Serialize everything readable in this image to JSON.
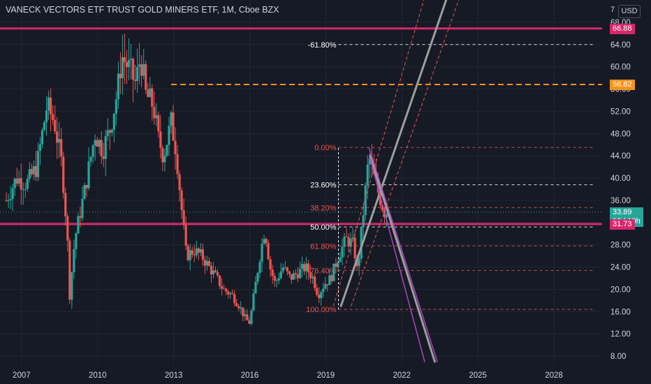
{
  "header": {
    "title": "VANECK VECTORS ETF TRUST GOLD MINERS ETF, 1M, Cboe BZX",
    "currency": "USD",
    "top_value": "7"
  },
  "badges": {
    "resistance": {
      "label": "66.88",
      "color": "#d5286b"
    },
    "fib_orange": {
      "label": "56.82",
      "color": "#f7931a"
    },
    "last_price": {
      "label": "33.89",
      "color": "#26a69a"
    },
    "countdown": {
      "label": "10d 19h"
    },
    "support": {
      "label": "31.73",
      "color": "#d5286b"
    }
  },
  "chart_data": {
    "type": "candlestick",
    "title": "VANECK VECTORS ETF TRUST GOLD MINERS ETF, 1M, Cboe BZX",
    "x_ticks": [
      {
        "label": "2007",
        "year": 2007
      },
      {
        "label": "2010",
        "year": 2010
      },
      {
        "label": "2013",
        "year": 2013
      },
      {
        "label": "2016",
        "year": 2016
      },
      {
        "label": "2019",
        "year": 2019
      },
      {
        "label": "2022",
        "year": 2022
      },
      {
        "label": "2025",
        "year": 2025
      },
      {
        "label": "2028",
        "year": 2028
      }
    ],
    "y_ticks": [
      "68.00",
      "64.00",
      "60.00",
      "56.00",
      "52.00",
      "48.00",
      "44.00",
      "40.00",
      "36.00",
      "32.00",
      "28.00",
      "24.00",
      "20.00",
      "16.00",
      "12.00",
      "8.00"
    ],
    "ylim": [
      6.5,
      72
    ],
    "xlim": [
      2006.15,
      2029.9
    ],
    "price_path": [
      [
        2006.4,
        36
      ],
      [
        2006.8,
        40
      ],
      [
        2007.2,
        39
      ],
      [
        2007.6,
        42
      ],
      [
        2008.0,
        53
      ],
      [
        2008.3,
        50
      ],
      [
        2008.6,
        42
      ],
      [
        2008.8,
        30
      ],
      [
        2008.9,
        19
      ],
      [
        2009.1,
        29
      ],
      [
        2009.5,
        38
      ],
      [
        2009.9,
        48
      ],
      [
        2010.2,
        45
      ],
      [
        2010.5,
        49
      ],
      [
        2010.8,
        56
      ],
      [
        2010.95,
        62
      ],
      [
        2011.2,
        60
      ],
      [
        2011.5,
        57
      ],
      [
        2011.7,
        62
      ],
      [
        2011.9,
        55
      ],
      [
        2012.2,
        53
      ],
      [
        2012.4,
        47
      ],
      [
        2012.6,
        44
      ],
      [
        2012.9,
        50
      ],
      [
        2013.1,
        45
      ],
      [
        2013.3,
        35
      ],
      [
        2013.5,
        26
      ],
      [
        2013.8,
        27
      ],
      [
        2014.1,
        26
      ],
      [
        2014.4,
        24
      ],
      [
        2014.7,
        22
      ],
      [
        2014.95,
        20
      ],
      [
        2015.3,
        19
      ],
      [
        2015.6,
        17
      ],
      [
        2015.85,
        14.5
      ],
      [
        2016.0,
        14
      ],
      [
        2016.2,
        20
      ],
      [
        2016.4,
        26
      ],
      [
        2016.6,
        31
      ],
      [
        2016.8,
        24
      ],
      [
        2017.0,
        21
      ],
      [
        2017.3,
        24
      ],
      [
        2017.6,
        22
      ],
      [
        2017.9,
        23
      ],
      [
        2018.2,
        24
      ],
      [
        2018.5,
        22
      ],
      [
        2018.7,
        19
      ],
      [
        2018.95,
        21
      ],
      [
        2019.2,
        22
      ],
      [
        2019.5,
        26
      ],
      [
        2019.8,
        29
      ],
      [
        2020.1,
        28
      ],
      [
        2020.25,
        23
      ],
      [
        2020.4,
        30
      ],
      [
        2020.55,
        37
      ],
      [
        2020.7,
        44
      ],
      [
        2020.9,
        40
      ],
      [
        2021.1,
        37
      ],
      [
        2021.3,
        34
      ],
      [
        2021.45,
        33.89
      ]
    ],
    "horizontal_levels": [
      {
        "value": 66.88,
        "color": "#d5286b",
        "style": "solid"
      },
      {
        "value": 31.73,
        "color": "#d5286b",
        "style": "solid"
      },
      {
        "value": 56.82,
        "color": "#f7931a",
        "style": "dashed",
        "label": "38.20%"
      }
    ],
    "last_price": 33.89,
    "fibonacci": {
      "from_year": 2019.5,
      "to_year": 2021.2,
      "line_end_year": 2029.6,
      "levels": [
        {
          "label": "-61.80%",
          "value": 64.0,
          "color": "#ffffff"
        },
        {
          "label": "0.00%",
          "value": 45.5,
          "color": "#ef5350"
        },
        {
          "label": "23.60%",
          "value": 38.8,
          "color": "#ffffff"
        },
        {
          "label": "38.20%",
          "value": 34.7,
          "color": "#ef5350"
        },
        {
          "label": "50.00%",
          "value": 31.2,
          "color": "#ffffff"
        },
        {
          "label": "61.80%",
          "value": 27.8,
          "color": "#ef5350"
        },
        {
          "label": "76.40%",
          "value": 23.4,
          "color": "#ef5350"
        },
        {
          "label": "100.00%",
          "value": 16.4,
          "color": "#ef5350"
        }
      ]
    },
    "trend_lines": [
      {
        "color": "#9e9e9e",
        "width": 3,
        "points": [
          [
            2019.6,
            17
          ],
          [
            2023.9,
            74
          ]
        ]
      },
      {
        "color": "#9e9e9e",
        "width": 3,
        "points": [
          [
            2020.75,
            44
          ],
          [
            2023.3,
            7
          ]
        ]
      },
      {
        "color": "#ab47bc",
        "width": 1.5,
        "points": [
          [
            2020.7,
            45.5
          ],
          [
            2023.4,
            7
          ]
        ]
      },
      {
        "color": "#ab47bc",
        "width": 1.5,
        "points": [
          [
            2020.75,
            43.5
          ],
          [
            2022.9,
            7
          ]
        ]
      },
      {
        "color": "#ef5350",
        "width": 1,
        "dash": true,
        "points": [
          [
            2019.3,
            17
          ],
          [
            2023.0,
            74
          ]
        ]
      },
      {
        "color": "#ef5350",
        "width": 1,
        "dash": true,
        "points": [
          [
            2020.0,
            17
          ],
          [
            2024.4,
            74
          ]
        ]
      }
    ]
  }
}
